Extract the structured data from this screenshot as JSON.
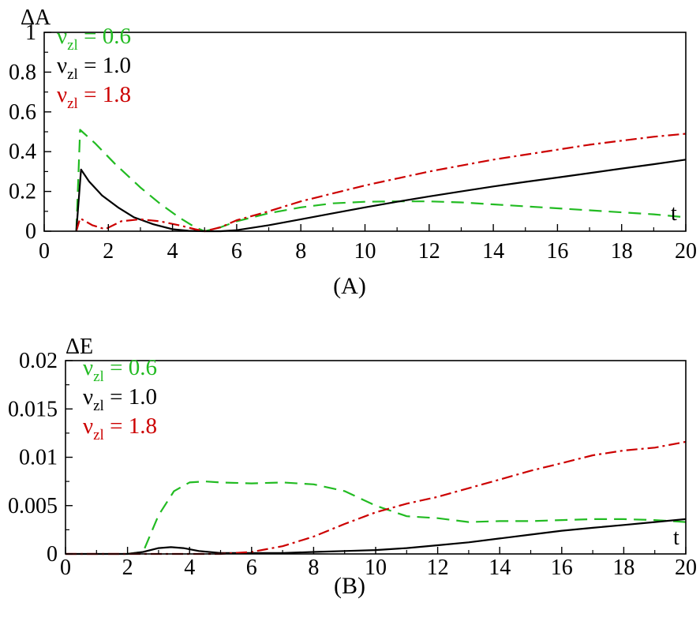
{
  "chart_data": [
    {
      "type": "line",
      "panel_label": "(A)",
      "ylabel": "ΔA",
      "xlabel": "t",
      "xlim": [
        0,
        20
      ],
      "ylim": [
        0,
        1
      ],
      "xticks": [
        "0",
        "2",
        "4",
        "6",
        "8",
        "10",
        "12",
        "14",
        "16",
        "18",
        "20"
      ],
      "yticks": [
        "0",
        "0.2",
        "0.4",
        "0.6",
        "0.8",
        "1"
      ],
      "legend": {
        "placement": "top-left",
        "entries": [
          {
            "symbol": "ν",
            "sub": "zl",
            "text": " = 0.6",
            "color": "#22bb22"
          },
          {
            "symbol": "ν",
            "sub": "zl",
            "text": " = 1.0",
            "color": "#000000"
          },
          {
            "symbol": "ν",
            "sub": "zl",
            "text": " = 1.8",
            "color": "#cc0000"
          }
        ]
      },
      "series": [
        {
          "name": "ν_zl = 0.6",
          "color": "#22bb22",
          "dash": "16,9",
          "x": [
            1.0,
            1.12,
            1.6,
            2.2,
            3.0,
            3.6,
            4.2,
            4.7,
            5.0,
            5.5,
            6.0,
            7.0,
            8.0,
            9.0,
            10.0,
            11.0,
            12.0,
            13.0,
            14.0,
            15.0,
            16.0,
            17.0,
            18.0,
            19.0,
            20.0
          ],
          "y": [
            0.0,
            0.51,
            0.44,
            0.34,
            0.22,
            0.14,
            0.07,
            0.02,
            0.0,
            0.02,
            0.05,
            0.09,
            0.12,
            0.14,
            0.148,
            0.15,
            0.15,
            0.145,
            0.135,
            0.125,
            0.115,
            0.105,
            0.095,
            0.085,
            0.07
          ]
        },
        {
          "name": "ν_zl = 1.0",
          "color": "#000000",
          "dash": "",
          "x": [
            1.0,
            1.15,
            1.4,
            1.8,
            2.3,
            2.8,
            3.4,
            4.0,
            4.5,
            5.0,
            5.5,
            6.0,
            7.0,
            8.0,
            9.0,
            10.0,
            11.0,
            12.0,
            13.0,
            14.0,
            15.0,
            16.0,
            17.0,
            18.0,
            19.0,
            20.0
          ],
          "y": [
            0.0,
            0.31,
            0.25,
            0.18,
            0.12,
            0.07,
            0.035,
            0.01,
            0.002,
            0.0,
            0.0,
            0.005,
            0.03,
            0.06,
            0.09,
            0.12,
            0.148,
            0.175,
            0.2,
            0.225,
            0.248,
            0.27,
            0.292,
            0.315,
            0.337,
            0.36
          ]
        },
        {
          "name": "ν_zl = 1.8",
          "color": "#cc0000",
          "dash": "14,5,3,5",
          "x": [
            1.0,
            1.12,
            1.5,
            1.9,
            2.4,
            3.0,
            3.6,
            4.2,
            4.7,
            5.0,
            5.5,
            6.0,
            7.0,
            8.0,
            9.0,
            10.0,
            11.0,
            12.0,
            13.0,
            14.0,
            15.0,
            16.0,
            17.0,
            18.0,
            19.0,
            20.0
          ],
          "y": [
            0.0,
            0.065,
            0.03,
            0.01,
            0.05,
            0.06,
            0.05,
            0.03,
            0.01,
            0.0,
            0.02,
            0.055,
            0.1,
            0.15,
            0.19,
            0.23,
            0.265,
            0.3,
            0.33,
            0.36,
            0.385,
            0.41,
            0.435,
            0.455,
            0.475,
            0.49
          ]
        }
      ]
    },
    {
      "type": "line",
      "panel_label": "(B)",
      "ylabel": "ΔE",
      "xlabel": "t",
      "xlim": [
        0,
        20
      ],
      "ylim": [
        0,
        0.02
      ],
      "xticks": [
        "0",
        "2",
        "4",
        "6",
        "8",
        "10",
        "12",
        "14",
        "16",
        "18",
        "20"
      ],
      "yticks": [
        "0",
        "0.005",
        "0.01",
        "0.015",
        "0.02"
      ],
      "legend": {
        "placement": "top-left",
        "entries": [
          {
            "symbol": "ν",
            "sub": "zl",
            "text": " = 0.6",
            "color": "#22bb22"
          },
          {
            "symbol": "ν",
            "sub": "zl",
            "text": " = 1.0",
            "color": "#000000"
          },
          {
            "symbol": "ν",
            "sub": "zl",
            "text": " = 1.8",
            "color": "#cc0000"
          }
        ]
      },
      "series": [
        {
          "name": "ν_zl = 0.6",
          "color": "#22bb22",
          "dash": "16,9",
          "x": [
            2.0,
            2.5,
            3.0,
            3.5,
            4.0,
            4.5,
            5.0,
            6.0,
            7.0,
            8.0,
            9.0,
            10.0,
            11.0,
            12.0,
            13.0,
            14.0,
            15.0,
            16.0,
            17.0,
            18.0,
            19.0,
            20.0
          ],
          "y": [
            0.0,
            0.0002,
            0.004,
            0.0065,
            0.0074,
            0.0075,
            0.0074,
            0.0073,
            0.0074,
            0.0072,
            0.0065,
            0.005,
            0.0039,
            0.0037,
            0.0033,
            0.0034,
            0.0034,
            0.0035,
            0.0036,
            0.0036,
            0.0035,
            0.0033
          ]
        },
        {
          "name": "ν_zl = 1.0",
          "color": "#000000",
          "dash": "",
          "x": [
            0.0,
            2.0,
            2.5,
            3.0,
            3.4,
            3.8,
            4.3,
            5.0,
            6.0,
            7.0,
            8.0,
            9.0,
            10.0,
            11.0,
            12.0,
            13.0,
            14.0,
            15.0,
            16.0,
            17.0,
            18.0,
            19.0,
            20.0
          ],
          "y": [
            0.0,
            0.0,
            0.0002,
            0.0006,
            0.0007,
            0.0006,
            0.0003,
            0.0001,
            0.0001,
            0.0001,
            0.0002,
            0.0003,
            0.0004,
            0.0006,
            0.0009,
            0.0012,
            0.0016,
            0.002,
            0.0024,
            0.0027,
            0.003,
            0.0033,
            0.0036
          ]
        },
        {
          "name": "ν_zl = 1.8",
          "color": "#cc0000",
          "dash": "14,5,3,5",
          "x": [
            0.0,
            5.0,
            6.0,
            7.0,
            8.0,
            9.0,
            10.0,
            11.0,
            12.0,
            13.0,
            14.0,
            15.0,
            16.0,
            17.0,
            18.0,
            19.0,
            20.0
          ],
          "y": [
            0.0,
            0.0,
            0.0002,
            0.0008,
            0.0018,
            0.0031,
            0.0043,
            0.0052,
            0.0059,
            0.0068,
            0.0077,
            0.0086,
            0.0094,
            0.0102,
            0.0107,
            0.011,
            0.0116
          ]
        }
      ]
    }
  ]
}
